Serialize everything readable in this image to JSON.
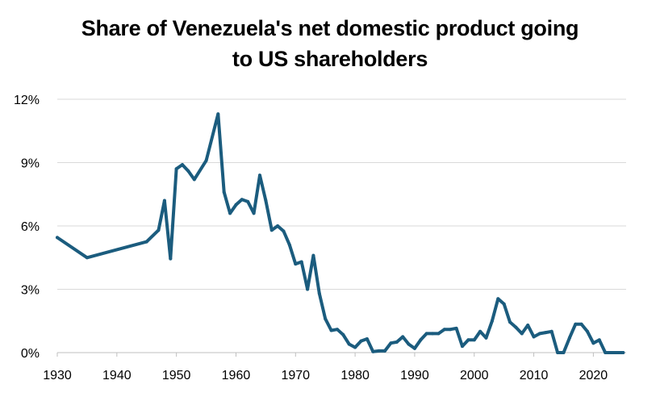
{
  "chart_data": {
    "type": "line",
    "title_lines": [
      "Share of Venezuela's net domestic product going",
      "to US shareholders"
    ],
    "xlabel": "",
    "ylabel": "",
    "xlim": [
      1930,
      2025.5
    ],
    "ylim": [
      0,
      12
    ],
    "x_ticks": [
      {
        "value": 1930,
        "label": "1930"
      },
      {
        "value": 1940,
        "label": "1940"
      },
      {
        "value": 1950,
        "label": "1950"
      },
      {
        "value": 1960,
        "label": "1960"
      },
      {
        "value": 1970,
        "label": "1970"
      },
      {
        "value": 1980,
        "label": "1980"
      },
      {
        "value": 1990,
        "label": "1990"
      },
      {
        "value": 2000,
        "label": "2000"
      },
      {
        "value": 2010,
        "label": "2010"
      },
      {
        "value": 2020,
        "label": "2020"
      }
    ],
    "y_ticks": [
      {
        "value": 0,
        "label": "0%"
      },
      {
        "value": 3,
        "label": "3%"
      },
      {
        "value": 6,
        "label": "6%"
      },
      {
        "value": 9,
        "label": "9%"
      },
      {
        "value": 12,
        "label": "12%"
      }
    ],
    "grid": true,
    "legend": "none",
    "series": [
      {
        "name": "Share of net domestic product to US shareholders (%)",
        "color": "#1b5c7e",
        "x": [
          1930,
          1935,
          1945,
          1947,
          1948,
          1949,
          1950,
          1951,
          1952,
          1953,
          1955,
          1957,
          1958,
          1959,
          1960,
          1961,
          1962,
          1963,
          1964,
          1965,
          1966,
          1967,
          1968,
          1969,
          1970,
          1971,
          1972,
          1973,
          1974,
          1975,
          1976,
          1977,
          1978,
          1979,
          1980,
          1981,
          1982,
          1983,
          1984,
          1985,
          1986,
          1987,
          1988,
          1989,
          1990,
          1991,
          1992,
          1993,
          1994,
          1995,
          1996,
          1997,
          1998,
          1999,
          2000,
          2001,
          2002,
          2003,
          2004,
          2005,
          2006,
          2007,
          2008,
          2009,
          2010,
          2011,
          2012,
          2013,
          2014,
          2015,
          2016,
          2017,
          2018,
          2019,
          2020,
          2021,
          2022,
          2023,
          2024,
          2025
        ],
        "values": [
          5.45,
          4.5,
          5.25,
          5.8,
          7.2,
          4.45,
          8.7,
          8.9,
          8.6,
          8.2,
          9.1,
          11.3,
          7.6,
          6.6,
          7.0,
          7.25,
          7.15,
          6.6,
          8.4,
          7.2,
          5.8,
          6.0,
          5.75,
          5.1,
          4.2,
          4.3,
          3.0,
          4.6,
          2.8,
          1.6,
          1.05,
          1.1,
          0.85,
          0.4,
          0.25,
          0.55,
          0.65,
          0.05,
          0.08,
          0.08,
          0.45,
          0.5,
          0.75,
          0.4,
          0.2,
          0.6,
          0.9,
          0.9,
          0.9,
          1.1,
          1.1,
          1.15,
          0.3,
          0.6,
          0.6,
          1.0,
          0.7,
          1.5,
          2.55,
          2.3,
          1.45,
          1.2,
          0.9,
          1.3,
          0.75,
          0.9,
          0.95,
          1.0,
          0.0,
          0.0,
          0.7,
          1.35,
          1.35,
          1.0,
          0.45,
          0.6,
          0.0,
          0.0,
          0.0,
          0.0
        ]
      }
    ]
  },
  "colors": {
    "line": "#1b5c7e",
    "grid": "#d9d9d9",
    "axis": "#bfbfbf"
  }
}
